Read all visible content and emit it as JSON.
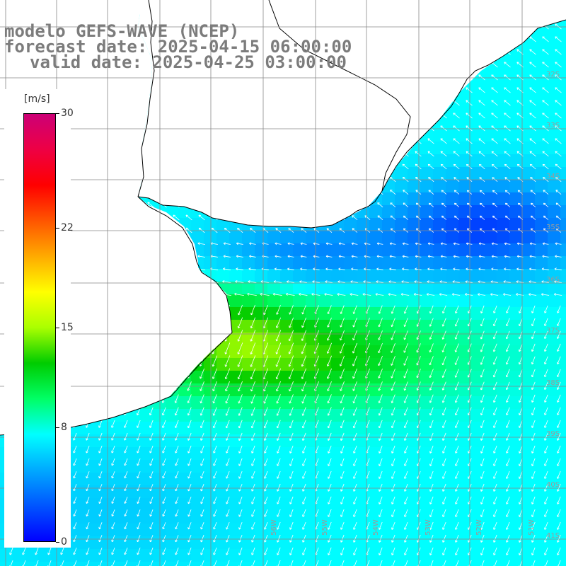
{
  "title": {
    "line1": "modelo GEFS-WAVE (NCEP)",
    "line2": "forecast date: 2025-04-15 06:00:00",
    "line3": "valid date: 2025-04-25 03:00:00"
  },
  "colorbar": {
    "unit": "[m/s]",
    "ticks": [
      "30",
      "22",
      "15",
      "8",
      "0"
    ],
    "tick_values": [
      30,
      22,
      15,
      8,
      0
    ],
    "colors": [
      "#0000ff",
      "#0055ff",
      "#00aaff",
      "#00ffff",
      "#00ff66",
      "#00cc00",
      "#aaff00",
      "#ffff00",
      "#ffaa00",
      "#ff5500",
      "#ff0000",
      "#ee0044",
      "#cc0077"
    ]
  },
  "map": {
    "lat_labels": [
      "32S",
      "33S",
      "34S",
      "35S",
      "36S",
      "37S",
      "38S",
      "39S",
      "40S",
      "41S"
    ],
    "lon_labels": [
      "56W",
      "55W",
      "54W",
      "53W",
      "52W",
      "51W"
    ],
    "colors": {
      "land": "#ffffff",
      "coast": "#000000",
      "grid": "#888888",
      "arrow": "#ffffff",
      "title": "#7c7c7c"
    }
  }
}
